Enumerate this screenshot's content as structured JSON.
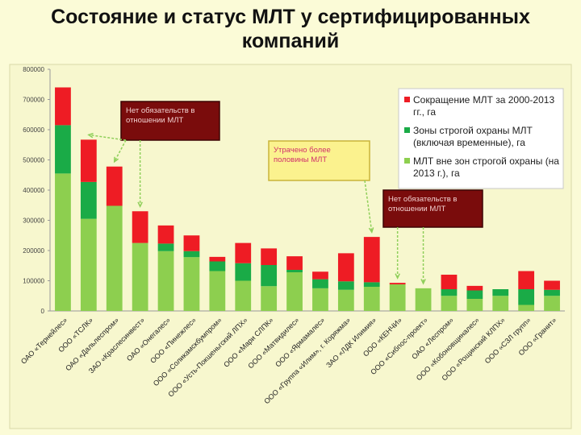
{
  "slide": {
    "title_line1": "Состояние и статус МЛТ у сертифицированных",
    "title_line2": "компаний"
  },
  "colors": {
    "background": "#fbfbd7",
    "plot_area": "#f7f7ce",
    "reduction": "#ee1c24",
    "strict_zone": "#1aab47",
    "outside_zone": "#8dcf4f",
    "note_dark": "#7a0c0c",
    "note_yellow": "#fbf28e"
  },
  "chart_data": {
    "type": "bar",
    "stacked": true,
    "title": "Состояние и статус МЛТ у сертифицированных компаний",
    "ylim": [
      0,
      800000
    ],
    "yticks": [
      "0",
      "100000",
      "200000",
      "300000",
      "400000",
      "500000",
      "600000",
      "700000",
      "800000"
    ],
    "grid": false,
    "legend_position": "top-right",
    "categories": [
      "ОАО «Тернейлес»",
      "ООО «ТСЛК»",
      "ОАО «Дальлеспром»",
      "ЗАО «Краслесинвест»",
      "ОАО «Онегалес»",
      "ООО «Пинежлес»",
      "ООО «Соликамскбумпром»",
      "ООО «Усть-Покшеньгский ЛПХ»",
      "ООО «Мари СЛПК»",
      "ООО «Матвидилес»",
      "ООО «Ярмамалес»",
      "ООО «Группа «Илим», г. Коряжма»",
      "ЗАО «ЛДК Илимия»",
      "ООО «КЕНЧИ»",
      "ООО «Сибпос-проект»",
      "ОАО «Леспром»",
      "ООО «Кобоновщиналес»",
      "ООО «Рощинский КЛПХ»",
      "ООО «СЗЛ групп»",
      "ООО «Гранит»"
    ],
    "series": [
      {
        "name": "МЛТ вне зон строгой охраны (на 2013 г.), га",
        "color_key": "outside_zone",
        "values": [
          455000,
          305000,
          348000,
          225000,
          198000,
          178000,
          132000,
          100000,
          82000,
          128000,
          75000,
          70000,
          80000,
          88000,
          75000,
          50000,
          40000,
          50000,
          20000,
          50000
        ]
      },
      {
        "name": "Зоны строгой охраны МЛТ (включая временные), га",
        "color_key": "strict_zone",
        "values": [
          160000,
          122000,
          0,
          0,
          25000,
          20000,
          32000,
          58000,
          70000,
          8000,
          30000,
          28000,
          15000,
          0,
          0,
          22000,
          28000,
          22000,
          52000,
          20000
        ]
      },
      {
        "name": "Сокращение МЛТ за 2000-2013 гг., га",
        "color_key": "reduction",
        "values": [
          125000,
          140000,
          130000,
          105000,
          60000,
          52000,
          15000,
          67000,
          55000,
          45000,
          25000,
          93000,
          150000,
          5000,
          0,
          48000,
          15000,
          0,
          60000,
          30000
        ]
      }
    ],
    "legend": [
      "Сокращение МЛТ за 2000-2013 гг., га",
      "Зоны строгой охраны МЛТ (включая временные), га",
      "МЛТ вне зон строгой охраны (на 2013 г.), га"
    ],
    "annotations": [
      {
        "id": "note1",
        "text": "Нет обязательств в отношении МЛТ",
        "style": "dark",
        "points_to": [
          1,
          2,
          3
        ]
      },
      {
        "id": "note2",
        "text": "Утрачено более половины МЛТ",
        "style": "yellow",
        "points_to": [
          12
        ]
      },
      {
        "id": "note3",
        "text": "Нет обязательств в отношении МЛТ",
        "style": "dark",
        "points_to": [
          13,
          14
        ]
      }
    ]
  }
}
